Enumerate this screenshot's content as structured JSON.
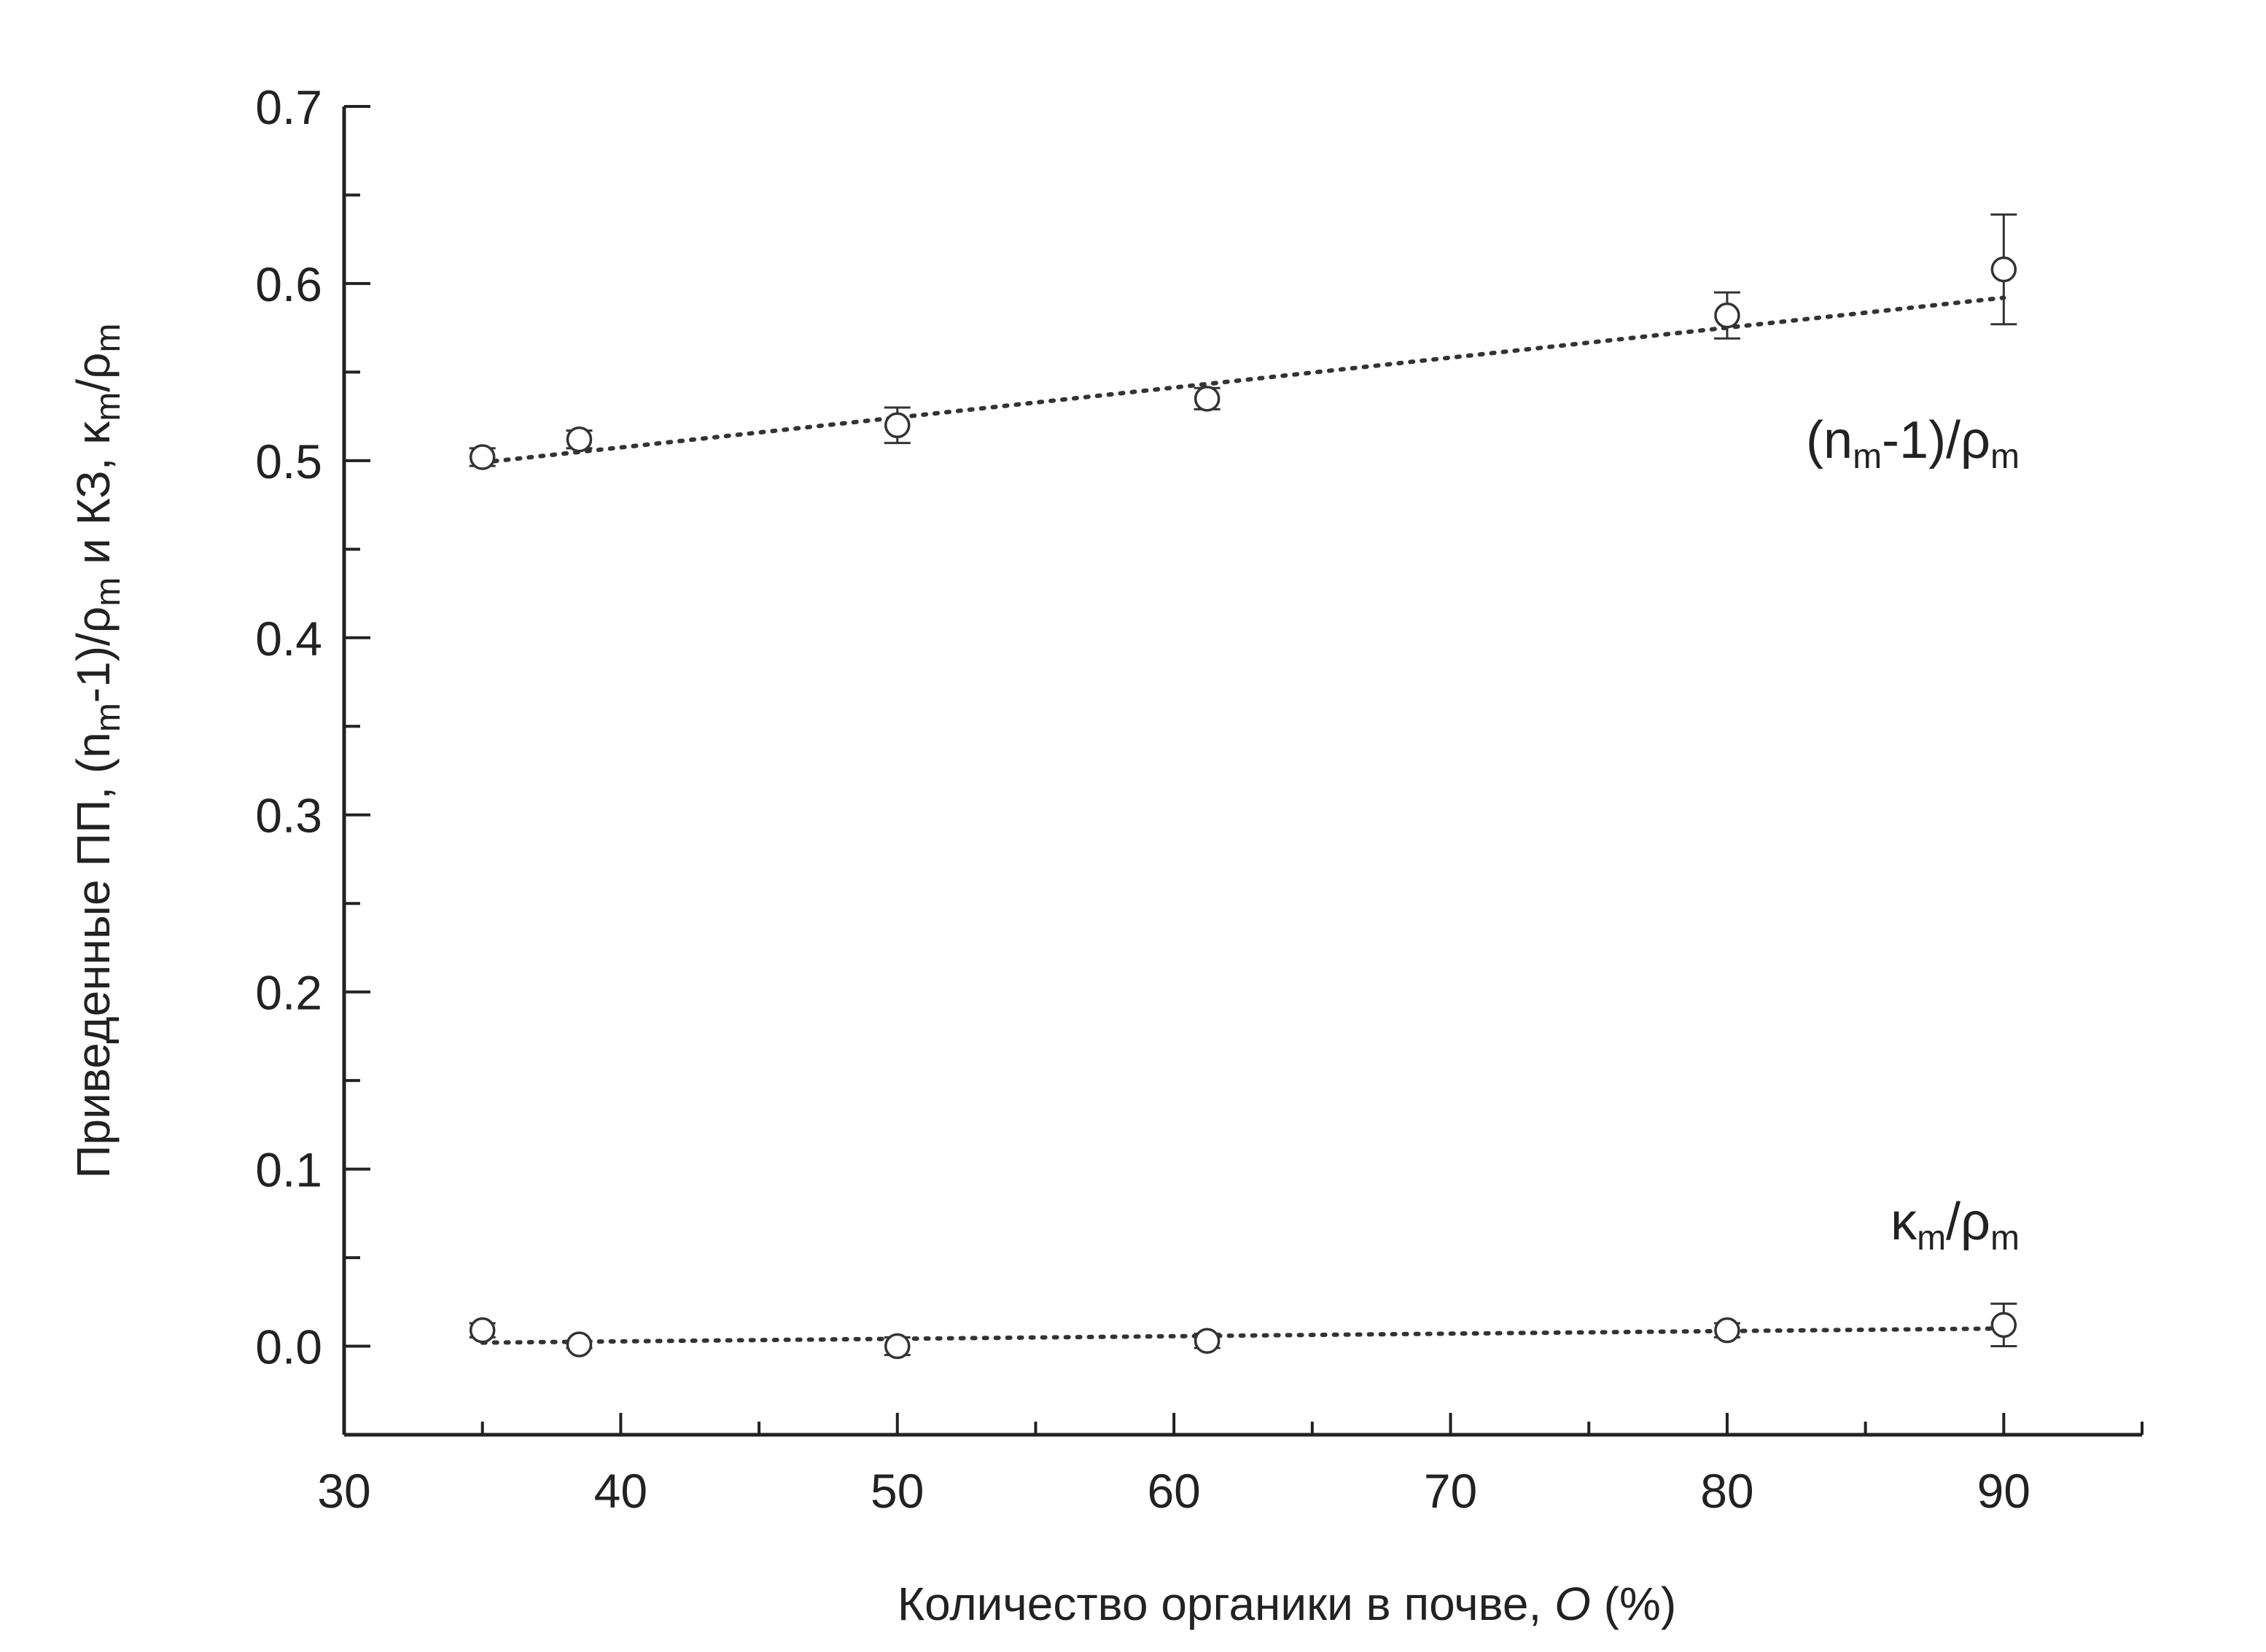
{
  "chart_data": {
    "type": "scatter",
    "title": "",
    "xlabel": "Количество органики в почве, O (%)",
    "xlabel_parts": [
      "Количество органики в почве, ",
      "O",
      " (%)"
    ],
    "ylabel": "Приведенные ПП, (n_m-1)/ρ_m и КЗ, κ_m/ρ_m",
    "ylabel_parts": [
      "Приведенные ПП, (n",
      "m",
      "-1)/ρ",
      "m",
      " и КЗ, κ",
      "m",
      "/ρ",
      "m"
    ],
    "xlim": [
      30,
      95
    ],
    "ylim": [
      -0.05,
      0.7
    ],
    "x_ticks": [
      "30",
      "40",
      "50",
      "60",
      "70",
      "80",
      "90"
    ],
    "y_ticks": [
      "0.0",
      "0.1",
      "0.2",
      "0.3",
      "0.4",
      "0.5",
      "0.6",
      "0.7"
    ],
    "grid": false,
    "series": [
      {
        "label_parts": [
          "(n",
          "m",
          "-1)/ρ",
          "m"
        ],
        "marker": "open-circle",
        "points": [
          {
            "x": 35.0,
            "y": 0.502,
            "err": 0.005
          },
          {
            "x": 38.5,
            "y": 0.512,
            "err": 0.005
          },
          {
            "x": 50.0,
            "y": 0.52,
            "err": 0.01
          },
          {
            "x": 61.2,
            "y": 0.535,
            "err": 0.006
          },
          {
            "x": 80.0,
            "y": 0.582,
            "err": 0.013
          },
          {
            "x": 90.0,
            "y": 0.608,
            "err": 0.031
          }
        ],
        "fit": {
          "style": "dotted",
          "x": [
            35,
            90
          ],
          "y": [
            0.499,
            0.592
          ]
        }
      },
      {
        "label_parts": [
          "κ",
          "m",
          "/ρ",
          "m"
        ],
        "marker": "open-circle",
        "points": [
          {
            "x": 35.0,
            "y": 0.009,
            "err": 0.004
          },
          {
            "x": 38.5,
            "y": 0.001,
            "err": 0.002
          },
          {
            "x": 50.0,
            "y": 0.0,
            "err": 0.005
          },
          {
            "x": 61.2,
            "y": 0.003,
            "err": 0.004
          },
          {
            "x": 80.0,
            "y": 0.009,
            "err": 0.004
          },
          {
            "x": 90.0,
            "y": 0.012,
            "err": 0.012
          }
        ],
        "fit": {
          "style": "dotted",
          "x": [
            35,
            90
          ],
          "y": [
            0.002,
            0.01
          ]
        }
      }
    ]
  }
}
